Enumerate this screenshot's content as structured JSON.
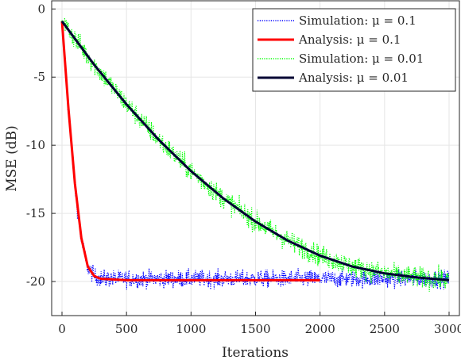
{
  "chart_data": {
    "type": "line",
    "xlabel": "Iterations",
    "ylabel": "MSE (dB)",
    "xlim": [
      -80,
      3080
    ],
    "ylim": [
      -22.5,
      0.6
    ],
    "x_ticks": [
      0,
      500,
      1000,
      1500,
      2000,
      2500,
      3000
    ],
    "y_ticks": [
      0,
      -5,
      -10,
      -15,
      -20
    ],
    "grid": true,
    "legend_position": "top-right",
    "series": [
      {
        "name": "Simulation:  μ = 0.1",
        "style": "dotted",
        "color": "#0000ff",
        "x": [
          0,
          50,
          100,
          150,
          200,
          250,
          300,
          500,
          1000,
          1500,
          2000,
          2500,
          3000
        ],
        "y": [
          -1.0,
          -7.5,
          -13.0,
          -17.0,
          -19.0,
          -19.6,
          -19.8,
          -19.8,
          -19.8,
          -19.8,
          -19.8,
          -19.8,
          -19.8
        ],
        "noise_db": 0.45
      },
      {
        "name": "Analysis:  μ = 0.1",
        "style": "solid",
        "color": "#ff0000",
        "x": [
          0,
          50,
          100,
          150,
          200,
          250,
          300,
          500,
          1000,
          1500,
          2000
        ],
        "y": [
          -0.9,
          -7.3,
          -12.8,
          -16.8,
          -18.9,
          -19.6,
          -19.8,
          -19.9,
          -19.9,
          -19.9,
          -19.9
        ]
      },
      {
        "name": "Simulation:  μ = 0.01",
        "style": "dotted",
        "color": "#00ff00",
        "x": [
          0,
          250,
          500,
          750,
          1000,
          1250,
          1500,
          1750,
          2000,
          2250,
          2500,
          2750,
          3000
        ],
        "y": [
          -0.9,
          -4.1,
          -7.0,
          -9.6,
          -11.9,
          -13.9,
          -15.6,
          -17.0,
          -18.1,
          -18.9,
          -19.4,
          -19.7,
          -19.9
        ],
        "noise_db": 0.55
      },
      {
        "name": "Analysis:  μ = 0.01",
        "style": "solid",
        "color": "#000033",
        "x": [
          0,
          250,
          500,
          750,
          1000,
          1250,
          1500,
          1750,
          2000,
          2250,
          2500,
          2750,
          3000
        ],
        "y": [
          -0.9,
          -4.1,
          -7.0,
          -9.6,
          -11.9,
          -13.9,
          -15.6,
          -17.0,
          -18.1,
          -18.9,
          -19.4,
          -19.7,
          -19.9
        ]
      }
    ]
  }
}
